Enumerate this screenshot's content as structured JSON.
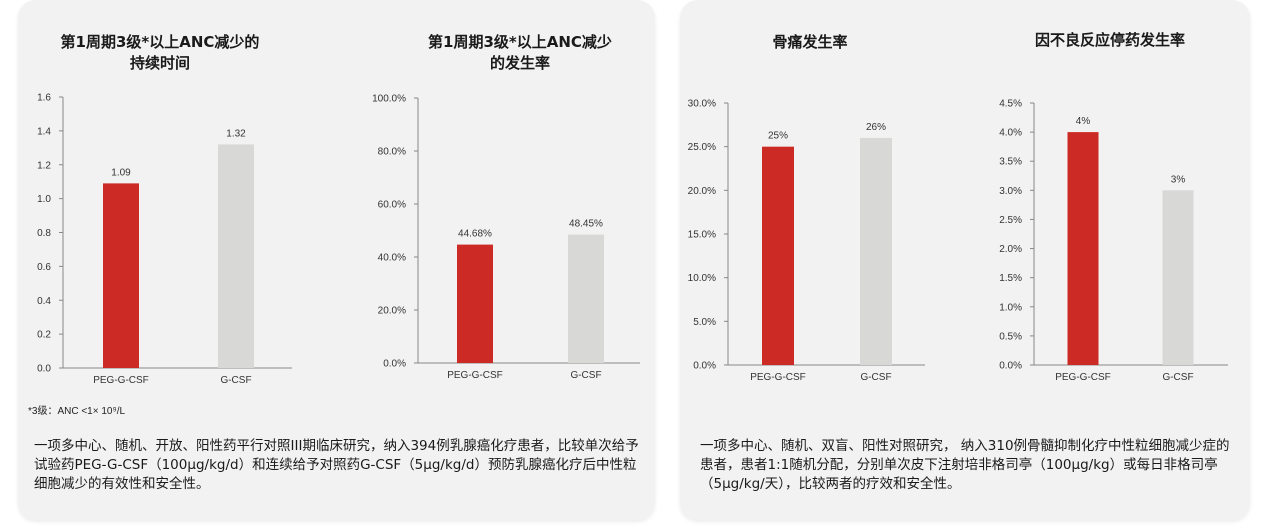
{
  "colors": {
    "peg": "#cc2a24",
    "gcsf": "#d8d8d6",
    "axis": "#888888"
  },
  "left": {
    "footnote": "*3级：ANC <1× 10⁹/L",
    "description": "一项多中心、随机、开放、阳性药平行对照III期临床研究，纳入394例乳腺癌化疗患者，比较单次给予试验药PEG-G-CSF（100μg/kg/d）和连续给予对照药G-CSF（5μg/kg/d）预防乳腺癌化疗后中性粒细胞减少的有效性和安全性。"
  },
  "right": {
    "description": "一项多中心、随机、双盲、阳性对照研究， 纳入310例骨髓抑制化疗中性粒细胞减少症的患者，患者1:1随机分配，分别单次皮下注射培非格司亭（100μg/kg）或每日非格司亭（5μg/kg/天），比较两者的疗效和安全性。"
  },
  "chart_data": [
    {
      "type": "bar",
      "title": "第1周期3级*以上ANC减少的\n持续时间",
      "categories": [
        "PEG-G-CSF",
        "G-CSF"
      ],
      "values": [
        1.09,
        1.32
      ],
      "value_labels": [
        "1.09",
        "1.32"
      ],
      "ylim": [
        0,
        1.6
      ],
      "yticks": [
        "0.0",
        "0.2",
        "0.4",
        "0.6",
        "0.8",
        "1.0",
        "1.2",
        "1.4",
        "1.6"
      ],
      "grid": false,
      "legend": "none"
    },
    {
      "type": "bar",
      "title": "第1周期3级*以上ANC减少\n的发生率",
      "categories": [
        "PEG-G-CSF",
        "G-CSF"
      ],
      "values": [
        44.68,
        48.45
      ],
      "value_labels": [
        "44.68%",
        "48.45%"
      ],
      "ylim": [
        0,
        100
      ],
      "yticks": [
        "0.0%",
        "20.0%",
        "40.0%",
        "60.0%",
        "80.0%",
        "100.0%"
      ],
      "grid": false,
      "legend": "none"
    },
    {
      "type": "bar",
      "title": "骨痛发生率",
      "categories": [
        "PEG-G-CSF",
        "G-CSF"
      ],
      "values": [
        25,
        26
      ],
      "value_labels": [
        "25%",
        "26%"
      ],
      "ylim": [
        0,
        30
      ],
      "yticks": [
        "0.0%",
        "5.0%",
        "10.0%",
        "15.0%",
        "20.0%",
        "25.0%",
        "30.0%"
      ],
      "grid": false,
      "legend": "none"
    },
    {
      "type": "bar",
      "title": "因不良反应停药发生率",
      "categories": [
        "PEG-G-CSF",
        "G-CSF"
      ],
      "values": [
        4,
        3
      ],
      "value_labels": [
        "4%",
        "3%"
      ],
      "ylim": [
        0,
        4.5
      ],
      "yticks": [
        "0.0%",
        "0.5%",
        "1.0%",
        "1.5%",
        "2.0%",
        "2.5%",
        "3.0%",
        "3.5%",
        "4.0%",
        "4.5%"
      ],
      "grid": false,
      "legend": "none"
    }
  ]
}
